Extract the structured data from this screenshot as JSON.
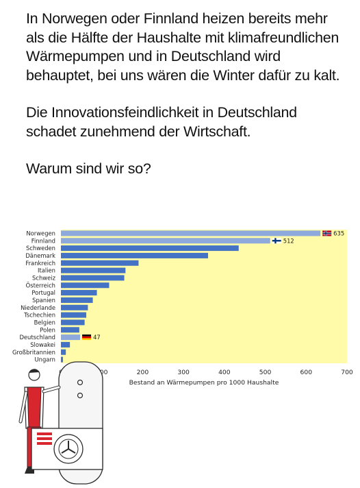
{
  "post": {
    "paragraph1": "In Norwegen oder Finnland heizen bereits mehr als die Hälfte der Haushalte mit klimafreundlichen Wärmepumpen und in Deutschland wird behauptet, bei uns wären die Winter dafür zu kalt.",
    "paragraph2": "Die Innovationsfeindlichkeit in Deutschland schadet zunehmend der Wirtschaft.",
    "paragraph3": "Warum sind wir so?"
  },
  "colors": {
    "plot_background": "#FFFBA8",
    "bar_dark": "#4472C4",
    "bar_light": "#8EA9DB",
    "worker_red": "#D7262E"
  },
  "chart_data": {
    "type": "bar",
    "orientation": "horizontal",
    "categories": [
      "Norwegen",
      "Finnland",
      "Schweden",
      "Dänemark",
      "Frankreich",
      "Italien",
      "Schweiz",
      "Österreich",
      "Portugal",
      "Spanien",
      "Niederlande",
      "Tschechien",
      "Belgien",
      "Polen",
      "Deutschland",
      "Slowakei",
      "Großbritannien",
      "Ungarn"
    ],
    "values": [
      635,
      512,
      435,
      360,
      190,
      158,
      155,
      118,
      88,
      78,
      66,
      62,
      58,
      45,
      47,
      22,
      12,
      5
    ],
    "highlighted": [
      "Norwegen",
      "Finnland",
      "Deutschland"
    ],
    "data_labels": {
      "Norwegen": "635",
      "Finnland": "512",
      "Deutschland": "47"
    },
    "flag_icons": {
      "Norwegen": "norway-flag-icon",
      "Finnland": "finland-flag-icon",
      "Deutschland": "germany-flag-icon"
    },
    "xlabel": "Bestand an Wärmepumpen pro 1000 Haushalte",
    "xlim": [
      0,
      700
    ],
    "xticks": [
      0,
      100,
      200,
      300,
      400,
      500,
      600,
      700
    ],
    "grid": false
  }
}
